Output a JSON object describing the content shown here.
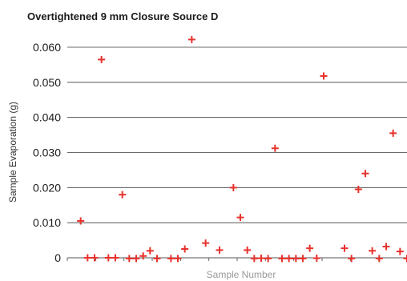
{
  "chart_data": {
    "type": "scatter",
    "title": "Overtightened 9 mm Closure  Source D",
    "xlabel": "Sample Number",
    "ylabel": "Sample Evaporation (g)",
    "ylim": [
      0,
      0.06
    ],
    "xlim": [
      0,
      48
    ],
    "x_tick_count": 12,
    "yticks": [
      "0",
      "0.010",
      "0.020",
      "0.030",
      "0.040",
      "0.050",
      "0.060"
    ],
    "ytick_values": [
      0,
      0.01,
      0.02,
      0.03,
      0.04,
      0.05,
      0.06
    ],
    "grid": "horizontal",
    "legend": "none",
    "marker": "plus",
    "marker_color": "#e8322c",
    "points": [
      {
        "x": 1,
        "y": 0.0105
      },
      {
        "x": 2,
        "y": 0.0
      },
      {
        "x": 3,
        "y": 0.0
      },
      {
        "x": 4,
        "y": 0.0565
      },
      {
        "x": 5,
        "y": 0.0
      },
      {
        "x": 6,
        "y": 0.0
      },
      {
        "x": 7,
        "y": 0.018
      },
      {
        "x": 8,
        "y": -0.0002
      },
      {
        "x": 9,
        "y": -0.0002
      },
      {
        "x": 10,
        "y": 0.0005
      },
      {
        "x": 11,
        "y": 0.002
      },
      {
        "x": 12,
        "y": -0.0002
      },
      {
        "x": 14,
        "y": -0.0002
      },
      {
        "x": 15,
        "y": -0.0002
      },
      {
        "x": 16,
        "y": 0.0025
      },
      {
        "x": 17,
        "y": 0.0622
      },
      {
        "x": 19,
        "y": 0.0042
      },
      {
        "x": 21,
        "y": 0.0022
      },
      {
        "x": 23,
        "y": 0.02
      },
      {
        "x": 24,
        "y": 0.0115
      },
      {
        "x": 25,
        "y": 0.0022
      },
      {
        "x": 26,
        "y": -0.0002
      },
      {
        "x": 27,
        "y": -0.0001
      },
      {
        "x": 28,
        "y": -0.0002
      },
      {
        "x": 29,
        "y": 0.0312
      },
      {
        "x": 30,
        "y": -0.0002
      },
      {
        "x": 31,
        "y": -0.0002
      },
      {
        "x": 32,
        "y": -0.0002
      },
      {
        "x": 33,
        "y": -0.0002
      },
      {
        "x": 34,
        "y": 0.0027
      },
      {
        "x": 35,
        "y": -0.0001
      },
      {
        "x": 36,
        "y": 0.0518
      },
      {
        "x": 39,
        "y": 0.0027
      },
      {
        "x": 40,
        "y": -0.0002
      },
      {
        "x": 41,
        "y": 0.0195
      },
      {
        "x": 42,
        "y": 0.024
      },
      {
        "x": 43,
        "y": 0.002
      },
      {
        "x": 44,
        "y": -0.0002
      },
      {
        "x": 45,
        "y": 0.0032
      },
      {
        "x": 46,
        "y": 0.0355
      },
      {
        "x": 47,
        "y": 0.0018
      },
      {
        "x": 48,
        "y": -0.0002
      }
    ]
  }
}
